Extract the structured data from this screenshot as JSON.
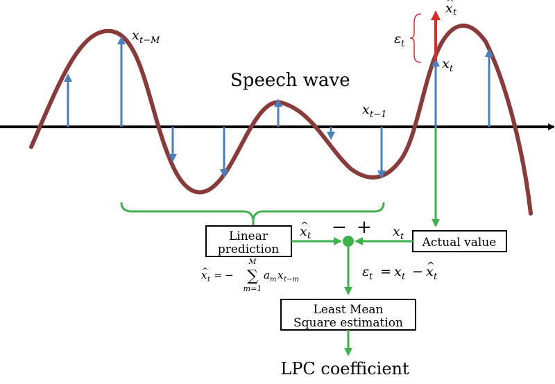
{
  "labels": {
    "title": "Speech wave",
    "linear_prediction_line1": "Linear",
    "linear_prediction_line2": "prediction",
    "actual_value": "Actual value",
    "lms_line1": "Least Mean",
    "lms_line2": "Square estimation",
    "output": "LPC coefficient",
    "minus": "−",
    "plus": "+"
  },
  "math": {
    "x": "x",
    "eps": "ε",
    "sub_t": "t",
    "sub_t_minus_M": "t−M",
    "sub_t_minus_1": "t−1",
    "hat": "^",
    "equals": "=",
    "minus": "−",
    "error_eq_rhs_x": "x",
    "sum_symbol": "∑",
    "sum_upper": "M",
    "sum_lower": "m=1",
    "coef": "a",
    "coef_sub": "m",
    "pred_sub": "t−m"
  },
  "colors": {
    "wave": "#8b3a3a",
    "sample_arrow": "#4a7fbf",
    "error_arrow": "#e02a2a",
    "flow": "#3cb34a",
    "axis": "#000000",
    "bracket_red": "#e02a2a"
  }
}
